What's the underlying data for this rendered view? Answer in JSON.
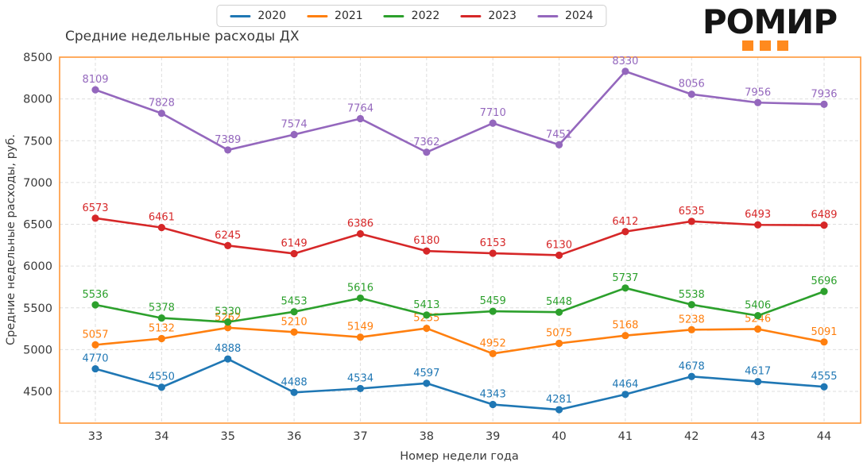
{
  "logo": {
    "text": "РОМИР",
    "accent_color": "#ff8a1e",
    "text_color": "#151515"
  },
  "chart_data": {
    "type": "line",
    "title": "Средние недельные расходы ДХ",
    "xlabel": "Номер недели года",
    "ylabel": "Средние недельные расходы, руб.",
    "categories": [
      33,
      34,
      35,
      36,
      37,
      38,
      39,
      40,
      41,
      42,
      43,
      44
    ],
    "series": [
      {
        "name": "2020",
        "color": "#1f77b4",
        "values": [
          4770,
          4550,
          4888,
          4488,
          4534,
          4597,
          4343,
          4281,
          4464,
          4678,
          4617,
          4555
        ]
      },
      {
        "name": "2021",
        "color": "#ff7f0e",
        "values": [
          5057,
          5132,
          5262,
          5210,
          5149,
          5255,
          4952,
          5075,
          5168,
          5238,
          5246,
          5091
        ]
      },
      {
        "name": "2022",
        "color": "#2ca02c",
        "values": [
          5536,
          5378,
          5330,
          5453,
          5616,
          5413,
          5459,
          5448,
          5737,
          5538,
          5406,
          5696
        ]
      },
      {
        "name": "2023",
        "color": "#d62728",
        "values": [
          6573,
          6461,
          6245,
          6149,
          6386,
          6180,
          6153,
          6130,
          6412,
          6535,
          6493,
          6489
        ]
      },
      {
        "name": "2024",
        "color": "#9467bd",
        "values": [
          8109,
          7828,
          7389,
          7574,
          7764,
          7362,
          7710,
          7451,
          8330,
          8056,
          7956,
          7936
        ]
      }
    ],
    "ylim": [
      4120,
      8500
    ],
    "yticks": [
      4500,
      5000,
      5500,
      6000,
      6500,
      7000,
      7500,
      8000,
      8500
    ],
    "grid": true,
    "grid_style": "dashed",
    "point_labels": true,
    "legend_position": "top-center",
    "frame_color": "#ff9838",
    "grid_color": "#dedede",
    "tick_color": "#3a3a3a"
  }
}
